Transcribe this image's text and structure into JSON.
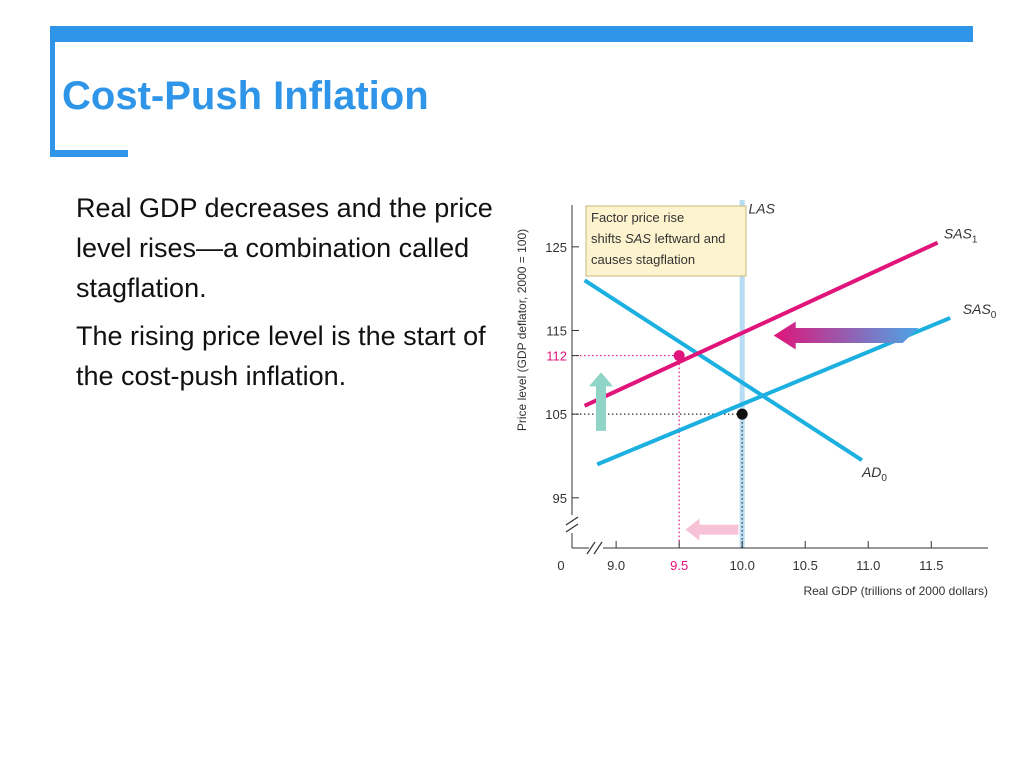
{
  "slide": {
    "title": "Cost-Push Inflation",
    "paragraphs": [
      "Real GDP decreases and the price level rises—a combination called stagflation.",
      "The rising price level is the start of the cost-push inflation."
    ],
    "accent_color": "#2f95e8",
    "title_color": "#2f95e8"
  },
  "chart_data": {
    "type": "line",
    "title": "",
    "xlabel": "Real GDP (trillions of 2000 dollars)",
    "ylabel": "Price level (GDP deflator, 2000 = 100)",
    "xlim": [
      8.65,
      11.95
    ],
    "ylim": [
      89,
      130
    ],
    "origin_label": "0",
    "x_ticks": [
      {
        "value": 9.0,
        "label": "9.0",
        "color": "#333333"
      },
      {
        "value": 9.5,
        "label": "9.5",
        "color": "#e0147a"
      },
      {
        "value": 10.0,
        "label": "10.0",
        "color": "#333333"
      },
      {
        "value": 10.5,
        "label": "10.5",
        "color": "#333333"
      },
      {
        "value": 11.0,
        "label": "11.0",
        "color": "#333333"
      },
      {
        "value": 11.5,
        "label": "11.5",
        "color": "#333333"
      }
    ],
    "y_ticks": [
      {
        "value": 95,
        "label": "95",
        "color": "#333333"
      },
      {
        "value": 105,
        "label": "105",
        "color": "#333333"
      },
      {
        "value": 112,
        "label": "112",
        "color": "#e0147a"
      },
      {
        "value": 115,
        "label": "115",
        "color": "#333333"
      },
      {
        "value": 125,
        "label": "125",
        "color": "#333333"
      }
    ],
    "series": [
      {
        "name": "AD",
        "subscript": "0",
        "color": "#1bb0e0",
        "points": [
          [
            8.75,
            121
          ],
          [
            10.95,
            99.5
          ]
        ],
        "label_at": [
          10.95,
          97.5
        ]
      },
      {
        "name": "SAS",
        "subscript": "0",
        "color": "#1bb0e0",
        "points": [
          [
            8.85,
            99
          ],
          [
            11.65,
            116.5
          ]
        ],
        "label_at": [
          11.75,
          117
        ]
      },
      {
        "name": "SAS",
        "subscript": "1",
        "color": "#e0147a",
        "points": [
          [
            8.75,
            106
          ],
          [
            11.55,
            125.5
          ]
        ],
        "label_at": [
          11.6,
          126
        ]
      }
    ],
    "vertical_lines": [
      {
        "name": "LAS",
        "x": 10.0,
        "color": "#b8dcf3",
        "label_at": [
          10.05,
          129
        ]
      }
    ],
    "points": [
      {
        "x": 10.0,
        "y": 105,
        "color": "#111111"
      },
      {
        "x": 9.5,
        "y": 112,
        "color": "#e0147a"
      }
    ],
    "guides": [
      {
        "x": 10.0,
        "y": 105,
        "color": "#333333"
      },
      {
        "x": 9.5,
        "y": 112,
        "color": "#e0147a"
      }
    ],
    "annotation": {
      "lines": [
        [
          {
            "t": "Factor price rise",
            "i": false
          }
        ],
        [
          {
            "t": "shifts ",
            "i": false
          },
          {
            "t": "SAS",
            "i": true
          },
          {
            "t": " leftward and",
            "i": false
          }
        ],
        [
          {
            "t": "causes stagflation",
            "i": false
          }
        ]
      ],
      "fill": "#fdf3cf",
      "stroke": "#c9b57a"
    },
    "shift_arrow": {
      "from": [
        11.4,
        114.4
      ],
      "to": [
        10.25,
        114.4
      ],
      "color_tail": "#4ba6e6",
      "color_head": "#e0147a"
    },
    "up_arrow": {
      "x": 8.88,
      "from": 103,
      "to": 110,
      "color": "#8fd4c7"
    },
    "left_arrow": {
      "y": 91.2,
      "from": 9.97,
      "to": 9.55,
      "color": "#f7c1d6"
    }
  }
}
